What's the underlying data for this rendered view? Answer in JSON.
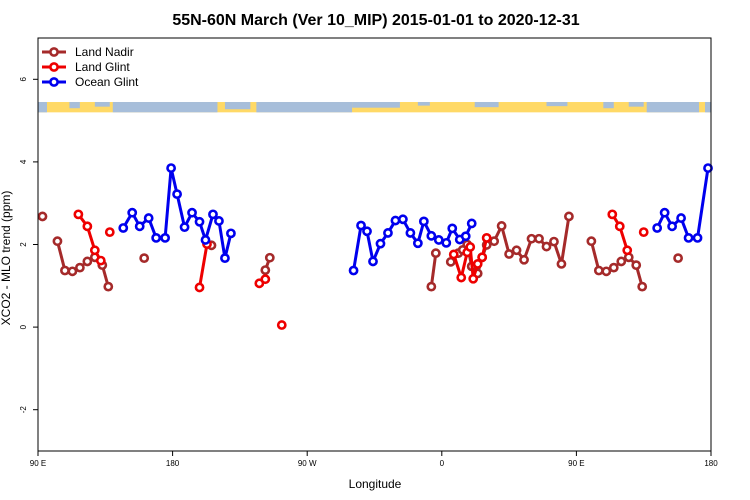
{
  "chart_data": {
    "type": "line",
    "title": "55N-60N March (Ver 10_MIP)   2015-01-01 to 2020-12-31",
    "xlabel": "Longitude",
    "ylabel": "XCO2 - MLO trend (ppm)",
    "xlim": [
      90,
      540
    ],
    "ylim": [
      -3,
      7
    ],
    "x_ticks": [
      {
        "value": 90,
        "label": "90 E"
      },
      {
        "value": 180,
        "label": "180"
      },
      {
        "value": 270,
        "label": "90 W"
      },
      {
        "value": 360,
        "label": "0"
      },
      {
        "value": 450,
        "label": "90 E"
      },
      {
        "value": 540,
        "label": "180"
      }
    ],
    "y_ticks": [
      {
        "value": -2,
        "label": "-2"
      },
      {
        "value": 0,
        "label": "0"
      },
      {
        "value": 2,
        "label": "2"
      },
      {
        "value": 4,
        "label": "4"
      },
      {
        "value": 6,
        "label": "6"
      }
    ],
    "legend_position": "top-left",
    "land_mask_band": {
      "y_range": [
        5.2,
        5.45
      ],
      "land_color": "#FFD966",
      "ocean_color": "#A7BEDA"
    },
    "series": [
      {
        "name": "Land Nadir",
        "color": "#A52A2A",
        "segments": [
          [
            [
              93,
              2.68
            ]
          ],
          [
            [
              103,
              2.08
            ],
            [
              108,
              1.37
            ],
            [
              113,
              1.35
            ],
            [
              118,
              1.44
            ],
            [
              123,
              1.59
            ],
            [
              128,
              1.69
            ],
            [
              133,
              1.5
            ],
            [
              137,
              0.98
            ]
          ],
          [
            [
              161,
              1.67
            ]
          ],
          [
            [
              206,
              1.98
            ]
          ],
          [
            [
              242,
              1.38
            ],
            [
              245,
              1.68
            ]
          ],
          [
            [
              353,
              0.98
            ],
            [
              356,
              1.79
            ]
          ],
          [
            [
              366,
              1.58
            ],
            [
              371,
              1.79
            ],
            [
              374,
              1.87
            ],
            [
              377,
              2.0
            ],
            [
              380,
              1.47
            ],
            [
              384,
              1.3
            ],
            [
              387,
              1.69
            ],
            [
              390,
              1.99
            ],
            [
              395,
              2.08
            ],
            [
              400,
              2.45
            ],
            [
              405,
              1.77
            ],
            [
              410,
              1.86
            ],
            [
              415,
              1.63
            ],
            [
              420,
              2.14
            ],
            [
              425,
              2.14
            ],
            [
              430,
              1.95
            ],
            [
              435,
              2.07
            ],
            [
              440,
              1.53
            ],
            [
              445,
              2.68
            ]
          ],
          [
            [
              460,
              2.08
            ],
            [
              465,
              1.37
            ],
            [
              470,
              1.35
            ],
            [
              475,
              1.44
            ],
            [
              480,
              1.59
            ],
            [
              485,
              1.69
            ],
            [
              490,
              1.5
            ],
            [
              494,
              0.98
            ]
          ],
          [
            [
              518,
              1.67
            ]
          ]
        ]
      },
      {
        "name": "Land Glint",
        "color": "#EE0000",
        "segments": [
          [
            [
              117,
              2.73
            ],
            [
              123,
              2.44
            ],
            [
              128,
              1.86
            ],
            [
              132,
              1.61
            ]
          ],
          [
            [
              138,
              2.3
            ]
          ],
          [
            [
              198,
              0.96
            ],
            [
              203,
              2.01
            ]
          ],
          [
            [
              238,
              1.06
            ],
            [
              242,
              1.16
            ]
          ],
          [
            [
              253,
              0.05
            ]
          ],
          [
            [
              368,
              1.76
            ],
            [
              373,
              1.2
            ],
            [
              377,
              1.81
            ],
            [
              379,
              1.94
            ],
            [
              381,
              1.17
            ],
            [
              384,
              1.53
            ],
            [
              387,
              1.69
            ],
            [
              390,
              2.16
            ]
          ],
          [
            [
              474,
              2.73
            ],
            [
              479,
              2.44
            ],
            [
              484,
              1.86
            ]
          ],
          [
            [
              495,
              2.3
            ]
          ]
        ]
      },
      {
        "name": "Ocean Glint",
        "color": "#0000EE",
        "segments": [
          [
            [
              147,
              2.4
            ],
            [
              153,
              2.77
            ],
            [
              158,
              2.44
            ],
            [
              164,
              2.64
            ],
            [
              169,
              2.16
            ],
            [
              175,
              2.16
            ],
            [
              179,
              3.85
            ],
            [
              183,
              3.22
            ],
            [
              188,
              2.42
            ],
            [
              193,
              2.77
            ],
            [
              198,
              2.55
            ],
            [
              202,
              2.11
            ],
            [
              207,
              2.73
            ],
            [
              211,
              2.57
            ],
            [
              215,
              1.67
            ],
            [
              219,
              2.27
            ]
          ],
          [
            [
              301,
              1.37
            ],
            [
              306,
              2.46
            ],
            [
              310,
              2.32
            ],
            [
              314,
              1.59
            ],
            [
              319,
              2.02
            ],
            [
              324,
              2.28
            ],
            [
              329,
              2.58
            ],
            [
              334,
              2.61
            ],
            [
              339,
              2.28
            ],
            [
              344,
              2.03
            ],
            [
              348,
              2.56
            ],
            [
              353,
              2.21
            ],
            [
              358,
              2.11
            ],
            [
              363,
              2.04
            ],
            [
              367,
              2.39
            ],
            [
              372,
              2.12
            ],
            [
              376,
              2.2
            ],
            [
              380,
              2.51
            ]
          ],
          [
            [
              504,
              2.4
            ],
            [
              509,
              2.77
            ],
            [
              514,
              2.44
            ],
            [
              520,
              2.64
            ],
            [
              525,
              2.16
            ],
            [
              531,
              2.16
            ],
            [
              538,
              3.85
            ]
          ]
        ]
      }
    ]
  }
}
